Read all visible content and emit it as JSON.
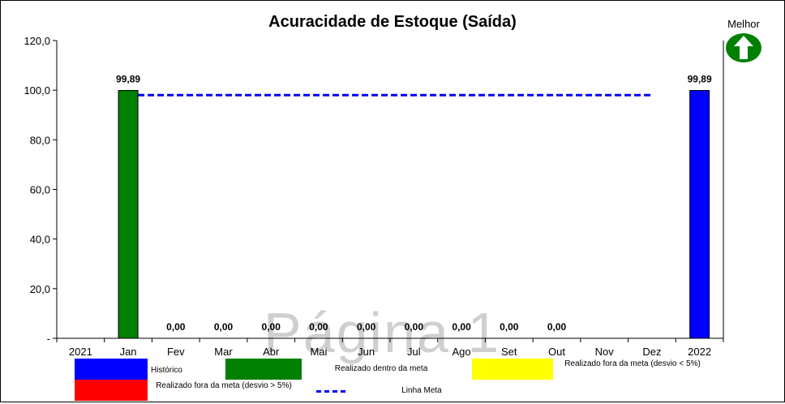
{
  "chart_data": {
    "type": "bar",
    "title": "Acuracidade de Estoque (Saída)",
    "categories": [
      "2021",
      "Jan",
      "Fev",
      "Mar",
      "Abr",
      "Mai",
      "Jun",
      "Jul",
      "Ago",
      "Set",
      "Out",
      "Nov",
      "Dez",
      "2022"
    ],
    "bars": [
      {
        "category": "Jan",
        "value": 99.89,
        "label": "99,89",
        "color": "#008000"
      },
      {
        "category": "Fev",
        "value": 0,
        "label": "0,00",
        "color": "#008000"
      },
      {
        "category": "Mar",
        "value": 0,
        "label": "0,00",
        "color": "#008000"
      },
      {
        "category": "Abr",
        "value": 0,
        "label": "0,00",
        "color": "#008000"
      },
      {
        "category": "Mai",
        "value": 0,
        "label": "0,00",
        "color": "#008000"
      },
      {
        "category": "Jun",
        "value": 0,
        "label": "0,00",
        "color": "#008000"
      },
      {
        "category": "Jul",
        "value": 0,
        "label": "0,00",
        "color": "#008000"
      },
      {
        "category": "Ago",
        "value": 0,
        "label": "0,00",
        "color": "#008000"
      },
      {
        "category": "Set",
        "value": 0,
        "label": "0,00",
        "color": "#008000"
      },
      {
        "category": "Out",
        "value": 0,
        "label": "0,00",
        "color": "#008000"
      },
      {
        "category": "2022",
        "value": 99.89,
        "label": "99,89",
        "color": "#0000ff"
      }
    ],
    "meta_line": {
      "value": 98,
      "from": "Jan",
      "to": "Dez",
      "color": "#0000ff",
      "style": "dashed"
    },
    "ylim": [
      0,
      120
    ],
    "yticks": [
      {
        "value": 0,
        "label": "-"
      },
      {
        "value": 20,
        "label": "20,0"
      },
      {
        "value": 40,
        "label": "40,0"
      },
      {
        "value": 60,
        "label": "60,0"
      },
      {
        "value": 80,
        "label": "80,0"
      },
      {
        "value": 100,
        "label": "100,0"
      },
      {
        "value": 120,
        "label": "120,0"
      }
    ],
    "grid": false,
    "legend": {
      "placement": "bottom",
      "entries": [
        {
          "label": "Histórico",
          "color": "#0000ff",
          "kind": "box"
        },
        {
          "label": "Realizado dentro da meta",
          "color": "#008000",
          "kind": "box"
        },
        {
          "label": "Realizado fora da meta (desvio < 5%)",
          "color": "#ffff00",
          "kind": "box"
        },
        {
          "label": "Realizado fora da meta (desvio > 5%)",
          "color": "#ff0000",
          "kind": "box"
        },
        {
          "label": "Linha Meta",
          "color": "#0000ff",
          "kind": "dashed"
        }
      ]
    }
  },
  "indicator": {
    "label": "Melhor",
    "icon": "up-arrow-icon",
    "color": "#008000"
  },
  "watermark": {
    "text": "Página 1"
  }
}
